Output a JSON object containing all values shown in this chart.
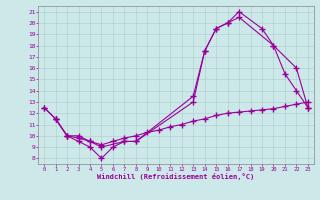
{
  "xlabel": "Windchill (Refroidissement éolien,°C)",
  "bg_color": "#cce8e8",
  "line_color": "#990099",
  "xlim": [
    -0.5,
    23.5
  ],
  "ylim": [
    7.5,
    21.5
  ],
  "xticks": [
    0,
    1,
    2,
    3,
    4,
    5,
    6,
    7,
    8,
    9,
    10,
    11,
    12,
    13,
    14,
    15,
    16,
    17,
    18,
    19,
    20,
    21,
    22,
    23
  ],
  "yticks": [
    8,
    9,
    10,
    11,
    12,
    13,
    14,
    15,
    16,
    17,
    18,
    19,
    20,
    21
  ],
  "series": [
    {
      "x": [
        0,
        1,
        2,
        3,
        4,
        5,
        6,
        7,
        8,
        13,
        14,
        15,
        16,
        17,
        19,
        20,
        21,
        22,
        23
      ],
      "y": [
        12.5,
        11.5,
        10.0,
        9.5,
        9.0,
        8.0,
        9.0,
        9.5,
        9.5,
        13.0,
        17.5,
        19.5,
        20.0,
        21.0,
        19.5,
        18.0,
        15.5,
        14.0,
        12.5
      ]
    },
    {
      "x": [
        1,
        2,
        3,
        4,
        5,
        7,
        8,
        13,
        14,
        15,
        16,
        17,
        20,
        22,
        23
      ],
      "y": [
        11.5,
        10.0,
        10.0,
        9.5,
        9.0,
        9.5,
        9.5,
        13.5,
        17.5,
        19.5,
        20.0,
        20.5,
        18.0,
        16.0,
        12.5
      ]
    },
    {
      "x": [
        0,
        1,
        2,
        3,
        4,
        5,
        6,
        7,
        8,
        9,
        10,
        11,
        12,
        13,
        14,
        15,
        16,
        17,
        18,
        19,
        20,
        21,
        22,
        23
      ],
      "y": [
        12.5,
        11.5,
        10.0,
        9.8,
        9.5,
        9.2,
        9.5,
        9.8,
        10.0,
        10.3,
        10.5,
        10.8,
        11.0,
        11.3,
        11.5,
        11.8,
        12.0,
        12.1,
        12.2,
        12.3,
        12.4,
        12.6,
        12.8,
        13.0
      ]
    }
  ]
}
